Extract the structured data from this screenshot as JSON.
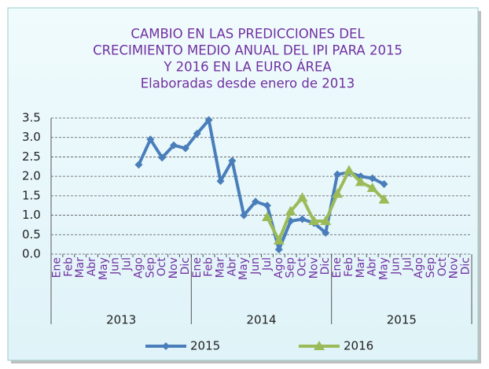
{
  "chart_data": {
    "type": "line",
    "title": [
      "CAMBIO EN LAS PREDICCIONES DEL",
      "CRECIMIENTO  MEDIO ANUAL DEL IPI PARA  2015",
      "Y 2016 EN LA EURO ÁREA",
      "Elaboradas desde enero de 2013"
    ],
    "categories": [
      "Ene",
      "Feb",
      "Mar",
      "Abr",
      "May",
      "Jun",
      "Jul",
      "Ago",
      "Sep",
      "Oct",
      "Nov",
      "Dic",
      "Ene",
      "Feb",
      "Mar",
      "Abr",
      "May",
      "Jun",
      "Jul",
      "Ago",
      "Sep",
      "Oct",
      "Nov",
      "Dic",
      "Ene",
      "Feb",
      "Mar",
      "Abr",
      "May",
      "Jun",
      "Jul",
      "Ago",
      "Sep",
      "Oct",
      "Nov",
      "Dic"
    ],
    "year_groups": [
      "2013",
      "2014",
      "2015"
    ],
    "series": [
      {
        "name": "2015",
        "color": "#4a7ebb",
        "marker": "diamond",
        "values": [
          null,
          null,
          null,
          null,
          null,
          null,
          null,
          2.3,
          2.95,
          2.48,
          2.8,
          2.72,
          3.1,
          3.45,
          1.88,
          2.4,
          1.0,
          1.35,
          1.25,
          0.12,
          0.85,
          0.9,
          0.8,
          0.55,
          2.05,
          2.1,
          2.0,
          1.95,
          1.8,
          null,
          null,
          null,
          null,
          null,
          null,
          null
        ]
      },
      {
        "name": "2016",
        "color": "#9bbb59",
        "marker": "triangle",
        "values": [
          null,
          null,
          null,
          null,
          null,
          null,
          null,
          null,
          null,
          null,
          null,
          null,
          null,
          null,
          null,
          null,
          null,
          null,
          0.95,
          0.35,
          1.1,
          1.45,
          0.85,
          0.85,
          1.55,
          2.15,
          1.85,
          1.7,
          1.4,
          null,
          null,
          null,
          null,
          null,
          null,
          null
        ]
      }
    ],
    "ylim": [
      0,
      3.5
    ],
    "yticks": [
      {
        "value": 0,
        "label": "0.0"
      },
      {
        "value": 0.5,
        "label": "0.5"
      },
      {
        "value": 1,
        "label": "1.0"
      },
      {
        "value": 1.5,
        "label": "1.5"
      },
      {
        "value": 2,
        "label": "2.0"
      },
      {
        "value": 2.5,
        "label": "2.5"
      },
      {
        "value": 3,
        "label": "3.0"
      },
      {
        "value": 3.5,
        "label": "3.5"
      }
    ],
    "grid": true,
    "legend": "bottom"
  }
}
